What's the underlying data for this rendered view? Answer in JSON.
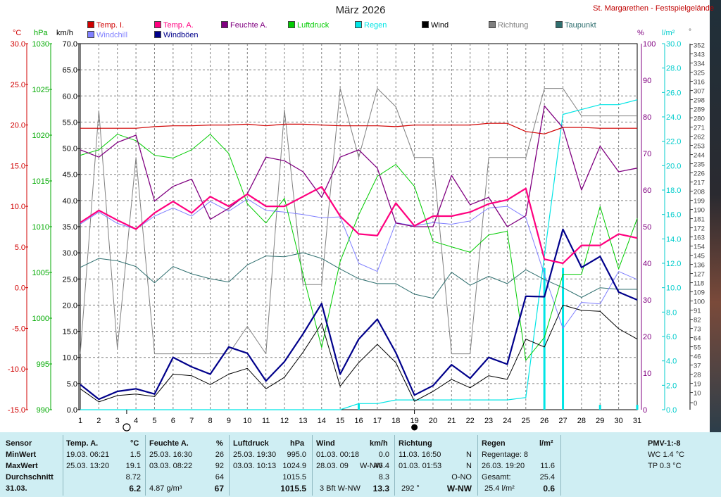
{
  "header": {
    "title": "März 2026",
    "station": "St. Margarethen - Festspielgelände"
  },
  "legend": [
    {
      "label": "Temp. I.",
      "color": "#d00000"
    },
    {
      "label": "Temp. A.",
      "color": "#ff007f"
    },
    {
      "label": "Feuchte A.",
      "color": "#800080"
    },
    {
      "label": "Luftdruck",
      "color": "#00cc00"
    },
    {
      "label": "Regen",
      "color": "#00e5e5"
    },
    {
      "label": "Wind",
      "color": "#000000"
    },
    {
      "label": "Richtung",
      "color": "#808080"
    },
    {
      "label": "Taupunkt",
      "color": "#2f6f6f"
    },
    {
      "label": "Windchill",
      "color": "#8080ff"
    },
    {
      "label": "Windböen",
      "color": "#00008b"
    }
  ],
  "axes": {
    "temp_unit": "°C",
    "pressure_unit": "hPa",
    "wind_unit": "km/h",
    "humidity_unit": "%",
    "rain_unit": "l/m²",
    "direction_unit": "°",
    "temp_ticks": [
      "30.0",
      "25.0",
      "20.0",
      "15.0",
      "10.0",
      "5.0",
      "0.0",
      "-5.0",
      "-10.0",
      "-15.0"
    ],
    "pressure_ticks": [
      "1030",
      "1025",
      "1020",
      "1015",
      "1010",
      "1005",
      "1000",
      "995",
      "990"
    ],
    "wind_ticks": [
      "70.0",
      "65.0",
      "60.0",
      "55.0",
      "50.0",
      "45.0",
      "40.0",
      "35.0",
      "30.0",
      "25.0",
      "20.0",
      "15.0",
      "10.0",
      "5.0",
      "0.0"
    ],
    "humidity_ticks": [
      "100",
      "90",
      "80",
      "70",
      "60",
      "50",
      "40",
      "30",
      "20",
      "10",
      "0"
    ],
    "rain_ticks": [
      "30.0",
      "28.0",
      "26.0",
      "24.0",
      "22.0",
      "20.0",
      "18.0",
      "16.0",
      "14.0",
      "12.0",
      "10.0",
      "8.0",
      "6.0",
      "4.0",
      "2.0",
      "0.0"
    ],
    "direction_ticks": [
      "352",
      "343",
      "334",
      "325",
      "316",
      "307",
      "298",
      "289",
      "280",
      "271",
      "262",
      "253",
      "244",
      "235",
      "226",
      "217",
      "208",
      "199",
      "190",
      "181",
      "172",
      "163",
      "154",
      "145",
      "136",
      "127",
      "118",
      "109",
      "100",
      "91",
      "82",
      "73",
      "64",
      "55",
      "46",
      "37",
      "28",
      "19",
      "10",
      "0"
    ],
    "x_ticks": [
      "1",
      "2",
      "3",
      "4",
      "5",
      "6",
      "7",
      "8",
      "9",
      "10",
      "11",
      "12",
      "13",
      "14",
      "15",
      "16",
      "17",
      "18",
      "19",
      "20",
      "21",
      "22",
      "23",
      "24",
      "25",
      "26",
      "27",
      "28",
      "29",
      "30",
      "31"
    ]
  },
  "chart_data": {
    "type": "line",
    "x": [
      1,
      2,
      3,
      4,
      5,
      6,
      7,
      8,
      9,
      10,
      11,
      12,
      13,
      14,
      15,
      16,
      17,
      18,
      19,
      20,
      21,
      22,
      23,
      24,
      25,
      26,
      27,
      28,
      29,
      30,
      31
    ],
    "grid": true,
    "moon": {
      "full_moon_day": 3.5,
      "new_moon_day": 19
    },
    "series": [
      {
        "name": "Temp. I.",
        "axis": "temp_c",
        "color": "#d00000",
        "width": 1.2,
        "values": [
          19.6,
          19.6,
          19.6,
          19.6,
          19.8,
          19.9,
          19.9,
          20.0,
          20.0,
          20.1,
          19.9,
          20.1,
          20.1,
          20.0,
          19.9,
          19.9,
          19.9,
          19.8,
          20.0,
          20.0,
          20.0,
          20.0,
          20.2,
          20.2,
          19.2,
          18.9,
          19.7,
          19.7,
          19.6,
          19.6,
          19.6
        ]
      },
      {
        "name": "Temp. A.",
        "axis": "temp_c",
        "color": "#ff007f",
        "width": 2.2,
        "values": [
          8.0,
          9.5,
          8.3,
          7.2,
          9.2,
          10.6,
          9.2,
          11.2,
          10.0,
          11.5,
          10.0,
          10.0,
          11.2,
          12.4,
          8.8,
          6.6,
          6.4,
          10.4,
          7.6,
          8.8,
          8.8,
          9.3,
          10.3,
          10.8,
          12.2,
          3.5,
          3.0,
          5.2,
          5.2,
          6.6,
          6.1
        ]
      },
      {
        "name": "Windchill",
        "axis": "temp_c",
        "color": "#8080ff",
        "width": 1,
        "values": [
          7.8,
          9.3,
          7.9,
          7.2,
          8.8,
          9.8,
          8.8,
          10.6,
          9.4,
          10.9,
          9.5,
          9.3,
          9.0,
          8.6,
          8.7,
          3.0,
          2.0,
          8.0,
          7.6,
          8.0,
          7.8,
          8.2,
          9.8,
          10.0,
          8.6,
          1.6,
          -5.0,
          -1.8,
          -2.0,
          2.0,
          1.0
        ]
      },
      {
        "name": "Taupunkt",
        "axis": "temp_c",
        "color": "#2f6f6f",
        "width": 1,
        "values": [
          2.5,
          3.6,
          3.3,
          2.6,
          0.6,
          2.6,
          1.7,
          1.1,
          0.7,
          2.8,
          3.9,
          3.8,
          4.3,
          3.6,
          2.3,
          1.1,
          0.5,
          0.5,
          -0.8,
          -1.3,
          1.9,
          0.3,
          1.4,
          0.5,
          2.2,
          1.0,
          0.0,
          -1.2,
          0.0,
          -0.2,
          -0.2
        ]
      },
      {
        "name": "Feuchte A.",
        "axis": "humidity",
        "color": "#800080",
        "width": 1.3,
        "values": [
          71,
          69,
          73,
          75,
          57,
          61,
          63,
          52,
          55,
          59,
          69,
          68,
          65,
          58,
          69,
          71,
          66,
          51,
          50,
          50,
          64,
          56,
          58,
          50,
          53,
          83,
          77,
          60,
          72,
          65,
          66
        ]
      },
      {
        "name": "Luftdruck",
        "axis": "pressure",
        "color": "#00cc00",
        "width": 1,
        "values": [
          1017.8,
          1018.4,
          1020.1,
          1019.4,
          1017.8,
          1017.5,
          1018.4,
          1020.1,
          1018.0,
          1012.5,
          1010.4,
          1013.1,
          1004.8,
          996.8,
          1006.2,
          1011.3,
          1015.5,
          1016.8,
          1014.4,
          1008.4,
          1007.8,
          1007.2,
          1009.1,
          1009.5,
          995.4,
          997.9,
          1004.8,
          1004.8,
          1012.2,
          1005.4,
          1010.9
        ]
      },
      {
        "name": "Wind",
        "axis": "wind",
        "color": "#000000",
        "width": 1,
        "values": [
          4.0,
          1.5,
          2.7,
          3.0,
          2.5,
          6.8,
          6.5,
          4.8,
          6.8,
          7.9,
          4.0,
          6.2,
          11.0,
          16.5,
          4.5,
          9.0,
          12.5,
          9.0,
          1.6,
          3.5,
          5.8,
          4.2,
          6.5,
          5.8,
          13.5,
          12.0,
          20.0,
          19.0,
          18.8,
          15.5,
          13.5
        ]
      },
      {
        "name": "Windböen",
        "axis": "wind",
        "color": "#00008b",
        "width": 2.2,
        "values": [
          4.8,
          2.0,
          3.5,
          4.0,
          3.0,
          10.0,
          8.2,
          6.8,
          12.0,
          10.8,
          5.5,
          9.2,
          14.5,
          20.3,
          6.8,
          13.5,
          17.3,
          10.9,
          2.8,
          4.6,
          8.6,
          6.0,
          10.0,
          8.7,
          21.7,
          21.6,
          34.5,
          27.2,
          29.3,
          22.5,
          21.0
        ]
      },
      {
        "name": "Richtung",
        "axis": "direction",
        "color": "#808080",
        "width": 1,
        "values": [
          55,
          294,
          60,
          248,
          55,
          55,
          55,
          55,
          55,
          82,
          55,
          295,
          123,
          123,
          316,
          248,
          316,
          298,
          248,
          248,
          55,
          55,
          248,
          248,
          248,
          316,
          316,
          289,
          289,
          289,
          289
        ]
      },
      {
        "name": "Regen",
        "axis": "rain",
        "color": "#00e5e5",
        "width": 1.2,
        "values": [
          0.0,
          0.0,
          0.0,
          0.0,
          0.0,
          0.0,
          0.0,
          0.0,
          0.0,
          0.0,
          0.0,
          0.0,
          0.0,
          0.0,
          0.0,
          0.5,
          0.5,
          0.8,
          0.8,
          0.8,
          0.8,
          0.8,
          0.8,
          0.8,
          1.0,
          12.6,
          24.2,
          24.6,
          25.0,
          25.0,
          25.4
        ]
      }
    ],
    "daily_rain_bars": [
      {
        "day": 16,
        "value": 0.5
      },
      {
        "day": 26,
        "value": 11.6
      },
      {
        "day": 27,
        "value": 11.6
      },
      {
        "day": 29,
        "value": 0.4
      },
      {
        "day": 31,
        "value": 0.4
      }
    ],
    "axis_ranges": {
      "temp_c": [
        -15,
        30
      ],
      "pressure": [
        990,
        1030
      ],
      "wind": [
        0,
        70
      ],
      "humidity": [
        0,
        100
      ],
      "rain": [
        0,
        30
      ],
      "direction": [
        0,
        360
      ]
    }
  },
  "stats": {
    "sensor_label": "Sensor",
    "min_label": "MinWert",
    "max_label": "MaxWert",
    "avg_label": "Durchschnitt",
    "date_label": "31.03.",
    "temp": {
      "title": "Temp. A.",
      "unit": "°C",
      "min_time": "19.03.  06:21",
      "min": "1.5",
      "max_time": "25.03.  13:20",
      "max": "19.1",
      "avg": "8.72",
      "today": "6.2"
    },
    "hum": {
      "title": "Feuchte A.",
      "unit": "%",
      "min_time": "25.03.  16:30",
      "min": "26",
      "max_time": "03.03.  08:22",
      "max": "92",
      "avg": "64",
      "today_abs": "4.87 g/m³",
      "today": "67"
    },
    "press": {
      "title": "Luftdruck",
      "unit": "hPa",
      "min_time": "25.03.  19:30",
      "min": "995.0",
      "max_time": "03.03.  10:13",
      "max": "1024.9",
      "avg": "1015.5",
      "today": "1015.5"
    },
    "wind": {
      "title": "Wind",
      "unit": "km/h",
      "min_time": "01.03.  00:18",
      "min": "0.0",
      "max_time": "28.03.  09",
      "max_dir": "W-NW",
      "max": "46.4",
      "avg": "8.3",
      "today_bft": "3 Bft W-NW",
      "today": "13.3"
    },
    "dir": {
      "title": "Richtung",
      "min_time": "11.03.  16:50",
      "min": "N",
      "max_time": "01.03.  01:53",
      "max": "N",
      "avg": "O-NO",
      "today_deg": "292 °",
      "today": "W-NW"
    },
    "rain": {
      "title": "Regen",
      "unit": "l/m²",
      "days": "Regentage: 8",
      "max_time": "26.03.  19:20",
      "max": "11.6",
      "total_label": "Gesamt:",
      "total": "25.4",
      "today_sum": "25.4 l/m²",
      "today": "0.6"
    },
    "pmv": {
      "title": "PMV-1:-8",
      "wc": "WC 1.4 °C",
      "tp": "TP 0.3 °C"
    }
  }
}
